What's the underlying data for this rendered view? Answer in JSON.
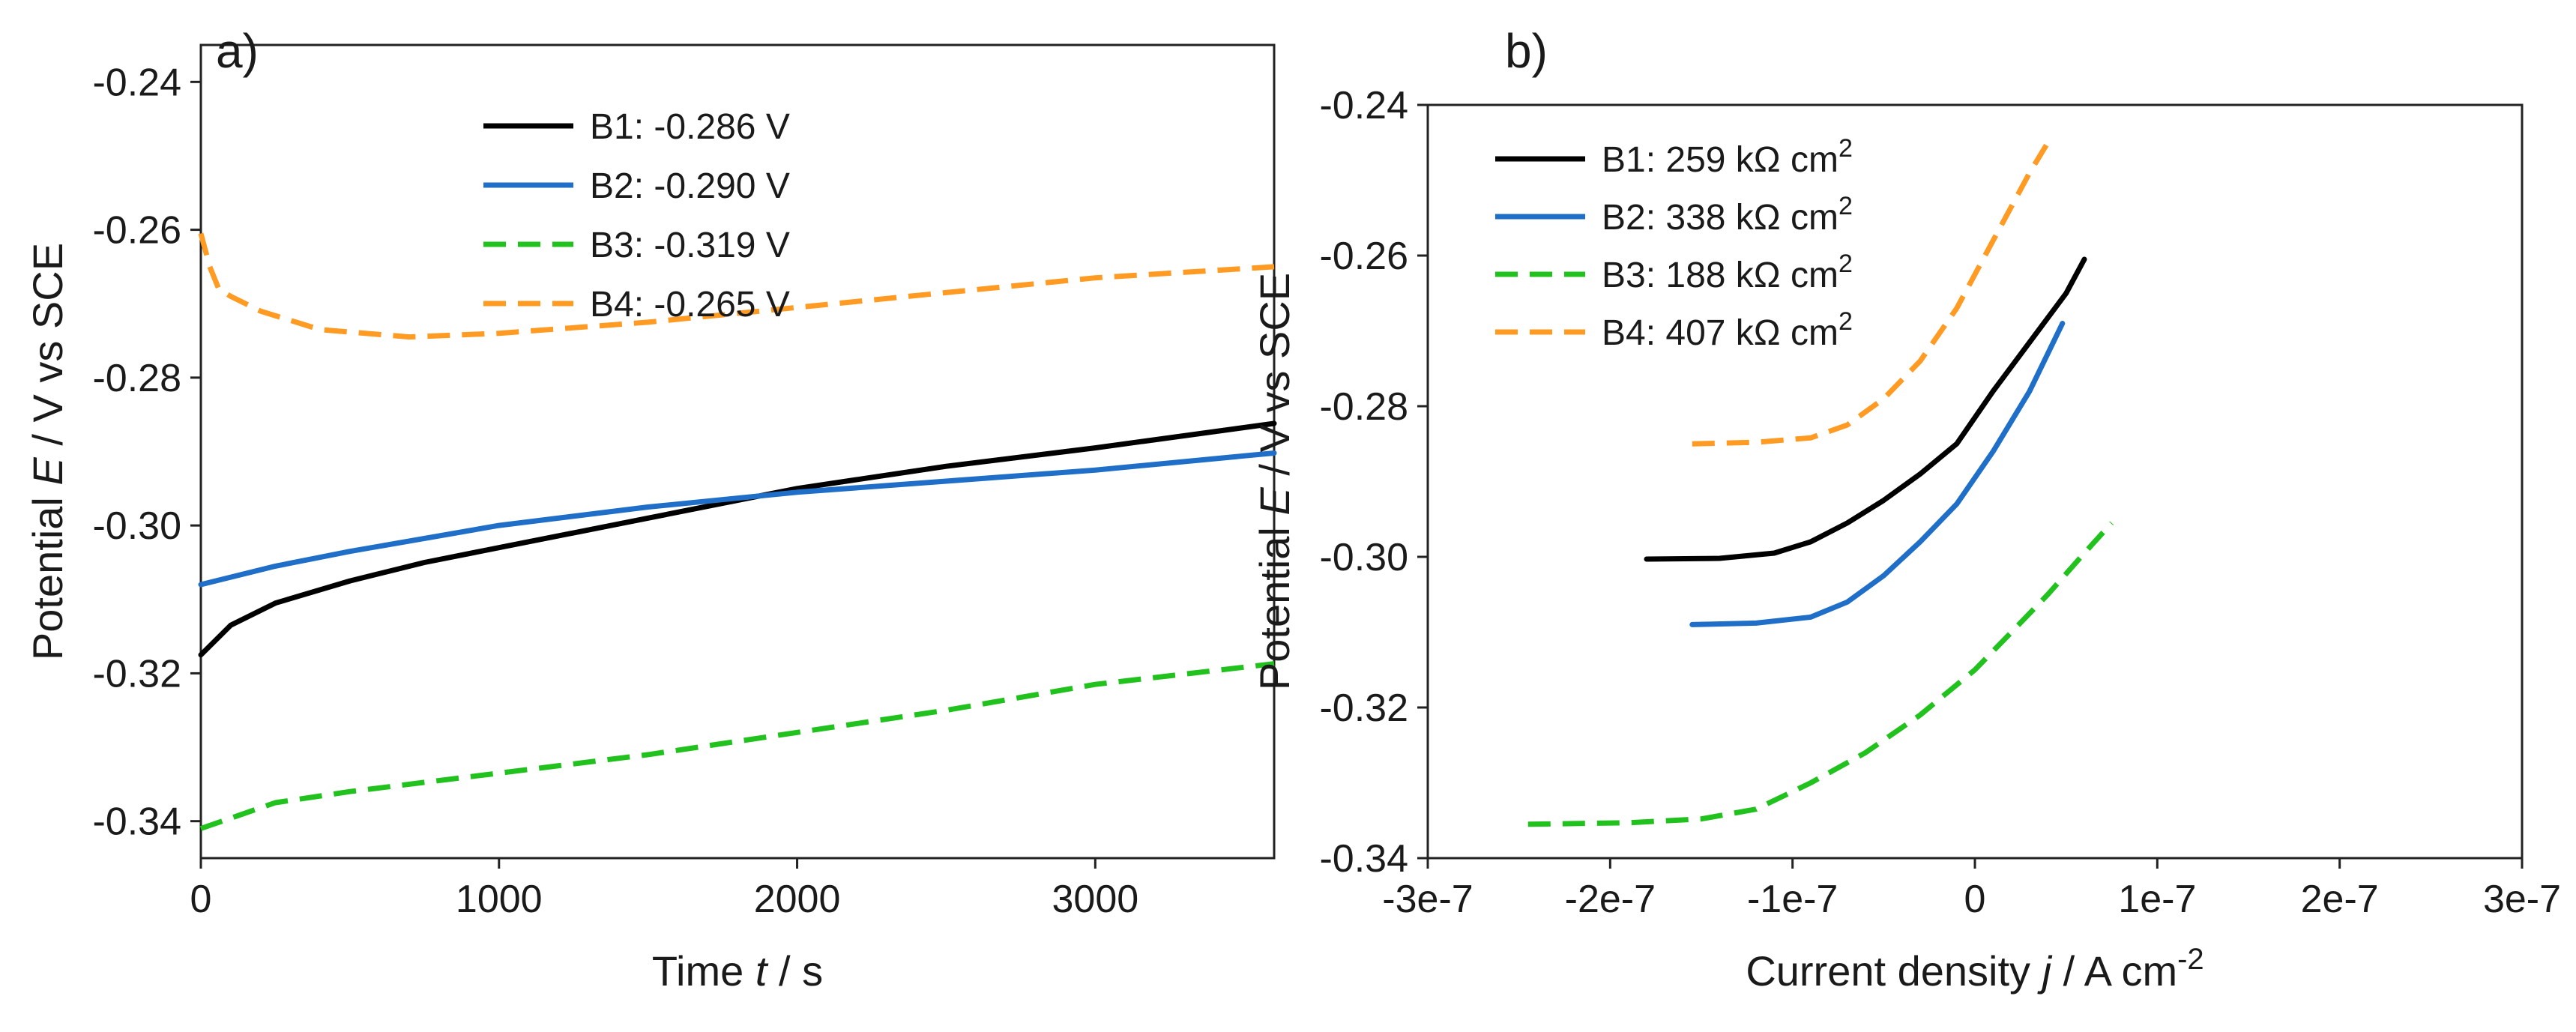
{
  "colors": {
    "B1": "#000000",
    "B2": "#1f6fc8",
    "B3": "#22c21e",
    "B4": "#ff9a22"
  },
  "chart_data": [
    {
      "type": "line",
      "panel_label": "a)",
      "xlabel_parts": {
        "prefix": "Time ",
        "var": "t",
        "suffix": " / s"
      },
      "ylabel_parts": {
        "prefix": "Potential ",
        "var": "E",
        "suffix": " / V vs SCE"
      },
      "xlim": [
        0,
        3600
      ],
      "ylim": [
        -0.345,
        -0.235
      ],
      "x_ticks": [
        0,
        1000,
        2000,
        3000
      ],
      "x_tick_labels": [
        "0",
        "1000",
        "2000",
        "3000"
      ],
      "y_ticks": [
        -0.34,
        -0.32,
        -0.3,
        -0.28,
        -0.26,
        -0.24
      ],
      "y_tick_labels": [
        "-0.34",
        "-0.32",
        "-0.30",
        "-0.28",
        "-0.26",
        "-0.24"
      ],
      "legend_position": "top-center",
      "series": [
        {
          "key": "B1",
          "name": "B1: -0.286 V",
          "style": "solid",
          "x": [
            0,
            100,
            250,
            500,
            750,
            1000,
            1500,
            2000,
            2500,
            3000,
            3600
          ],
          "y": [
            -0.3175,
            -0.3135,
            -0.3105,
            -0.3075,
            -0.305,
            -0.303,
            -0.299,
            -0.295,
            -0.292,
            -0.2895,
            -0.2862
          ]
        },
        {
          "key": "B2",
          "name": "B2: -0.290 V",
          "style": "solid",
          "x": [
            0,
            250,
            500,
            1000,
            1500,
            2000,
            2500,
            3000,
            3600
          ],
          "y": [
            -0.308,
            -0.3055,
            -0.3035,
            -0.3,
            -0.2975,
            -0.2955,
            -0.294,
            -0.2925,
            -0.2902
          ]
        },
        {
          "key": "B3",
          "name": "B3: -0.319 V",
          "style": "dashed",
          "x": [
            0,
            250,
            500,
            1000,
            1500,
            2000,
            2500,
            3000,
            3600
          ],
          "y": [
            -0.341,
            -0.3375,
            -0.336,
            -0.3335,
            -0.331,
            -0.328,
            -0.325,
            -0.3215,
            -0.3187
          ]
        },
        {
          "key": "B4",
          "name": "B4: -0.265 V",
          "style": "dashed",
          "x": [
            0,
            30,
            60,
            100,
            200,
            400,
            700,
            1000,
            1500,
            2000,
            2500,
            3000,
            3600
          ],
          "y": [
            -0.2605,
            -0.265,
            -0.268,
            -0.269,
            -0.271,
            -0.2735,
            -0.2745,
            -0.274,
            -0.2725,
            -0.2705,
            -0.2685,
            -0.2665,
            -0.265
          ]
        }
      ]
    },
    {
      "type": "line",
      "panel_label": "b)",
      "xlabel_parts": {
        "prefix": "Current density ",
        "var": "j",
        "suffix": " / A cm",
        "sup": "-2"
      },
      "ylabel_parts": {
        "prefix": "Potential ",
        "var": "E",
        "suffix": " / V vs SCE"
      },
      "xlim": [
        -3e-07,
        3e-07
      ],
      "ylim": [
        -0.34,
        -0.24
      ],
      "x_ticks": [
        -3e-07,
        -2e-07,
        -1e-07,
        0,
        1e-07,
        2e-07,
        3e-07
      ],
      "x_tick_labels": [
        "-3e-7",
        "-2e-7",
        "-1e-7",
        "0",
        "1e-7",
        "2e-7",
        "3e-7"
      ],
      "y_ticks": [
        -0.34,
        -0.32,
        -0.3,
        -0.28,
        -0.26,
        -0.24
      ],
      "y_tick_labels": [
        "-0.34",
        "-0.32",
        "-0.30",
        "-0.28",
        "-0.26",
        "-0.24"
      ],
      "legend_position": "top-left",
      "series": [
        {
          "key": "B1",
          "name": "B1: 259 kΩ cm",
          "name_sup": "2",
          "style": "solid",
          "x": [
            -1.8e-07,
            -1.4e-07,
            -1.1e-07,
            -9e-08,
            -7e-08,
            -5e-08,
            -3e-08,
            -1e-08,
            1e-08,
            3e-08,
            5e-08,
            6e-08
          ],
          "y": [
            -0.3003,
            -0.3002,
            -0.2995,
            -0.298,
            -0.2955,
            -0.2925,
            -0.289,
            -0.285,
            -0.278,
            -0.2715,
            -0.265,
            -0.2605
          ]
        },
        {
          "key": "B2",
          "name": "B2: 338 kΩ cm",
          "name_sup": "2",
          "style": "solid",
          "x": [
            -1.55e-07,
            -1.2e-07,
            -9e-08,
            -7e-08,
            -5e-08,
            -3e-08,
            -1e-08,
            1e-08,
            3e-08,
            4.8e-08
          ],
          "y": [
            -0.309,
            -0.3088,
            -0.308,
            -0.306,
            -0.3025,
            -0.298,
            -0.293,
            -0.286,
            -0.278,
            -0.269
          ]
        },
        {
          "key": "B3",
          "name": "B3: 188 kΩ cm",
          "name_sup": "2",
          "style": "dashed",
          "x": [
            -2.45e-07,
            -1.9e-07,
            -1.5e-07,
            -1.2e-07,
            -9e-08,
            -6e-08,
            -3e-08,
            0,
            2e-08,
            4e-08,
            6e-08,
            7.5e-08
          ],
          "y": [
            -0.3355,
            -0.3353,
            -0.3348,
            -0.3335,
            -0.33,
            -0.326,
            -0.321,
            -0.315,
            -0.31,
            -0.305,
            -0.2995,
            -0.2955
          ]
        },
        {
          "key": "B4",
          "name": "B4: 407 kΩ cm",
          "name_sup": "2",
          "style": "dashed",
          "x": [
            -1.55e-07,
            -1.2e-07,
            -9e-08,
            -7e-08,
            -5e-08,
            -3e-08,
            -1e-08,
            1e-08,
            3e-08,
            4e-08
          ],
          "y": [
            -0.285,
            -0.2848,
            -0.2842,
            -0.2825,
            -0.279,
            -0.274,
            -0.267,
            -0.258,
            -0.249,
            -0.245
          ]
        }
      ]
    }
  ]
}
